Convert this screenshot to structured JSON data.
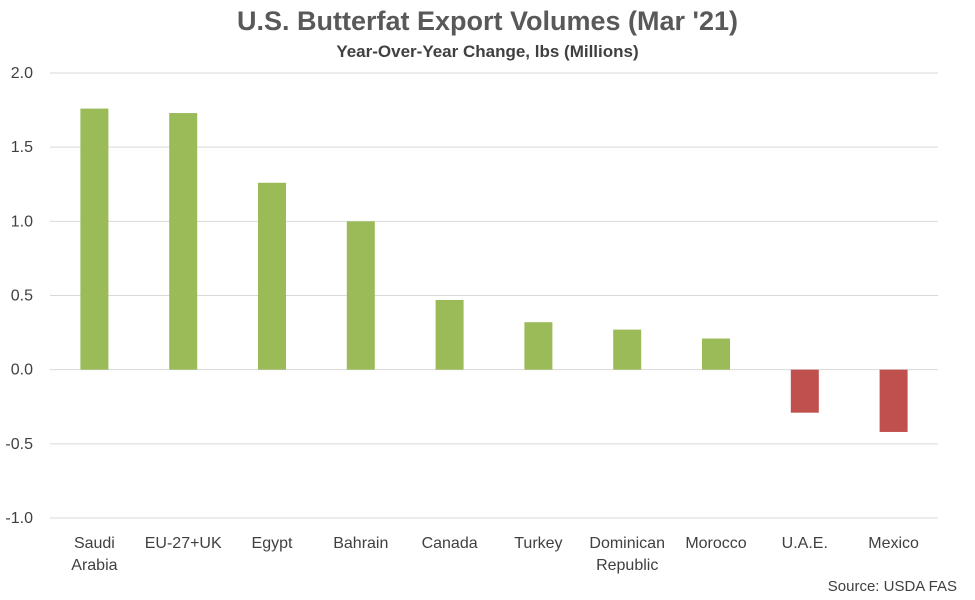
{
  "chart_data": {
    "type": "bar",
    "title": "U.S. Butterfat Export Volumes (Mar '21)",
    "subtitle": "Year-Over-Year Change, lbs (Millions)",
    "categories": [
      [
        "Saudi",
        "Arabia"
      ],
      [
        "EU-27+UK"
      ],
      [
        "Egypt"
      ],
      [
        "Bahrain"
      ],
      [
        "Canada"
      ],
      [
        "Turkey"
      ],
      [
        "Dominican",
        "Republic"
      ],
      [
        "Morocco"
      ],
      [
        "U.A.E."
      ],
      [
        "Mexico"
      ]
    ],
    "values": [
      1.76,
      1.73,
      1.26,
      1.0,
      0.47,
      0.32,
      0.27,
      0.21,
      -0.29,
      -0.42
    ],
    "ylim": [
      -1.0,
      2.0
    ],
    "yticks": [
      "2.0",
      "1.5",
      "1.0",
      "0.5",
      "0.0",
      "-0.5",
      "-1.0"
    ],
    "ytick_values": [
      2.0,
      1.5,
      1.0,
      0.5,
      0.0,
      -0.5,
      -1.0
    ],
    "grid": true,
    "colors": {
      "positive": "#9bbb59",
      "negative": "#c0504d",
      "grid": "#d9d9d9"
    },
    "source": "Source: USDA FAS"
  }
}
